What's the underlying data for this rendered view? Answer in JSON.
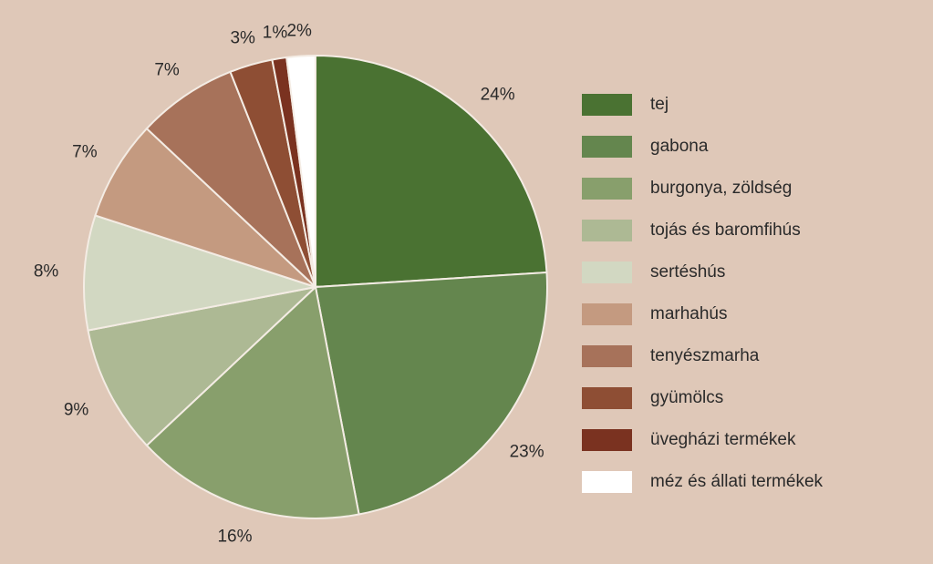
{
  "chart_data": {
    "type": "pie",
    "title": "",
    "start_angle_deg": 0,
    "slices": [
      {
        "label": "tej",
        "value": 24,
        "display": "24%",
        "color": "#4a7232"
      },
      {
        "label": "gabona",
        "value": 23,
        "display": "23%",
        "color": "#64864e"
      },
      {
        "label": "burgonya, zöldség",
        "value": 16,
        "display": "16%",
        "color": "#889f6c"
      },
      {
        "label": "tojás és baromfihús",
        "value": 9,
        "display": "9%",
        "color": "#adb994"
      },
      {
        "label": "sertéshús",
        "value": 8,
        "display": "8%",
        "color": "#d2d8c2"
      },
      {
        "label": "marhahús",
        "value": 7,
        "display": "7%",
        "color": "#c49a80"
      },
      {
        "label": "tenyészmarha",
        "value": 7,
        "display": "7%",
        "color": "#a7725a"
      },
      {
        "label": "gyümölcs",
        "value": 3,
        "display": "3%",
        "color": "#8e4e34"
      },
      {
        "label": "üvegházi termékek",
        "value": 1,
        "display": "1%",
        "color": "#7a3220"
      },
      {
        "label": "méz és állati termékek",
        "value": 2,
        "display": "2%",
        "color": "#ffffff"
      }
    ],
    "legend_position": "right"
  }
}
